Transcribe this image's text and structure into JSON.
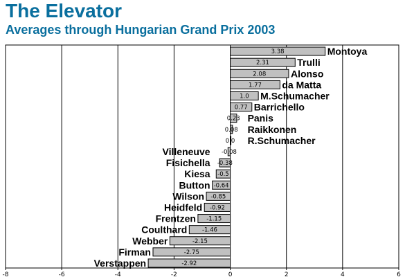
{
  "chart_data": {
    "type": "bar",
    "orientation": "horizontal",
    "title": "The Elevator",
    "subtitle": "Averages through Hungarian Grand Prix 2003",
    "categories": [
      "Montoya",
      "Trulli",
      "Alonso",
      "da Matta",
      "M.Schumacher",
      "Barrichello",
      "Panis",
      "Raikkonen",
      "R.Schumacher",
      "Villeneuve",
      "Fisichella",
      "Kiesa",
      "Button",
      "Wilson",
      "Heidfeld",
      "Frentzen",
      "Coulthard",
      "Webber",
      "Firman",
      "Verstappen"
    ],
    "values": [
      3.38,
      2.31,
      2.08,
      1.77,
      1.0,
      0.77,
      0.23,
      0.08,
      0.0,
      -0.08,
      -0.38,
      -0.5,
      -0.64,
      -0.85,
      -0.92,
      -1.15,
      -1.46,
      -2.15,
      -2.75,
      -2.92
    ],
    "value_labels": [
      "3.38",
      "2.31",
      "2.08",
      "1.77",
      "1.0",
      "0.77",
      "0.23",
      "0.08",
      "0.0",
      "-0.08",
      "-0.38",
      "-0.5",
      "-0.64",
      "-0.85",
      "-0.92",
      "-1.15",
      "-1.46",
      "-2.15",
      "-2.75",
      "-2.92"
    ],
    "xlim": [
      -8,
      6
    ],
    "xticks": [
      -8,
      -6,
      -4,
      -2,
      0,
      2,
      4,
      6
    ],
    "grid": "vertical",
    "bar_color": "#c0c0c0"
  }
}
